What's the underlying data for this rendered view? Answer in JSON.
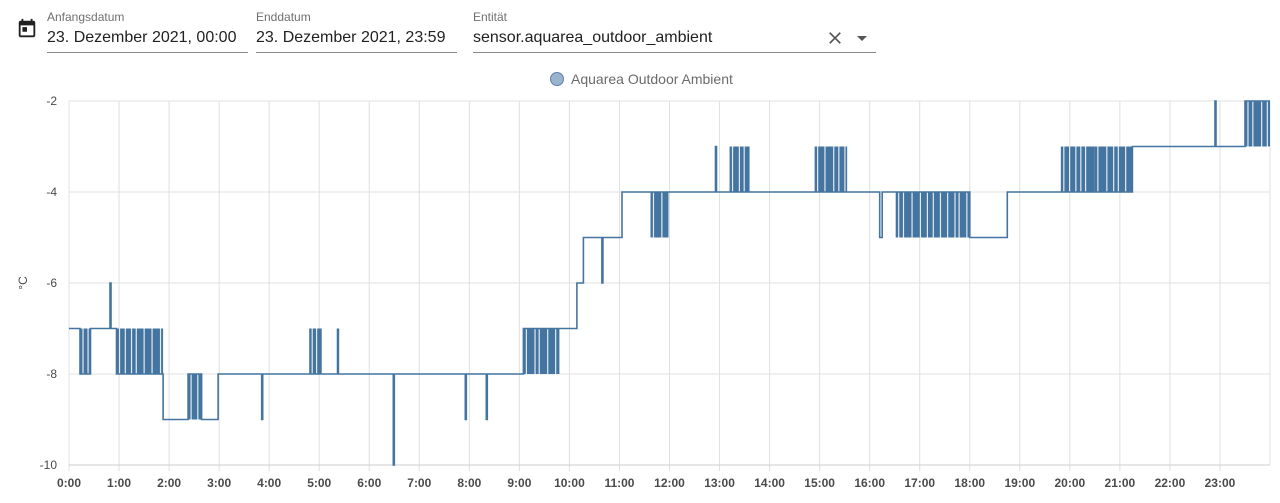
{
  "header": {
    "calendar_icon": "calendar-icon",
    "start": {
      "label": "Anfangsdatum",
      "value": "23. Dezember 2021, 00:00"
    },
    "end": {
      "label": "Enddatum",
      "value": "23. Dezember 2021, 23:59"
    },
    "entity": {
      "label": "Entität",
      "value": "sensor.aquarea_outdoor_ambient",
      "clear_icon": "close-icon",
      "dropdown_icon": "arrow-drop-down-icon"
    }
  },
  "colors": {
    "series": "#4474a0",
    "grid": "#e0e0e0"
  },
  "chart_data": {
    "type": "line",
    "ylabel": "°C",
    "ylim": [
      -10,
      -2
    ],
    "yticks": [
      "-2",
      "-4",
      "-6",
      "-8",
      "-10"
    ],
    "xlim": [
      0,
      24
    ],
    "xticks": [
      "0:00",
      "1:00",
      "2:00",
      "3:00",
      "4:00",
      "5:00",
      "6:00",
      "7:00",
      "8:00",
      "9:00",
      "10:00",
      "11:00",
      "12:00",
      "13:00",
      "14:00",
      "15:00",
      "16:00",
      "17:00",
      "18:00",
      "19:00",
      "20:00",
      "21:00",
      "22:00",
      "23:00"
    ],
    "grid": true,
    "legend_position": "top-center",
    "series": [
      {
        "name": "Aquarea Outdoor Ambient",
        "x": [
          0.0,
          0.22,
          0.22,
          0.43,
          0.43,
          0.82,
          0.82,
          0.84,
          0.84,
          0.95,
          0.95,
          1.88,
          1.88,
          2.38,
          2.38,
          2.65,
          2.65,
          2.98,
          2.98,
          3.85,
          3.85,
          3.87,
          3.87,
          6.48,
          6.48,
          6.5,
          6.5,
          7.92,
          7.92,
          7.94,
          7.94,
          8.34,
          8.34,
          8.36,
          8.36,
          9.08,
          9.08,
          9.8,
          9.8,
          10.15,
          10.15,
          10.28,
          10.28,
          10.65,
          10.65,
          10.67,
          10.67,
          11.05,
          11.05,
          11.62,
          11.62,
          11.98,
          11.98,
          12.92,
          12.92,
          12.94,
          12.94,
          13.6,
          13.6,
          14.9,
          14.9,
          15.55,
          15.55,
          16.2,
          16.2,
          16.25,
          16.25,
          16.52,
          16.52,
          18.0,
          18.0,
          18.75,
          18.75,
          19.82,
          19.82,
          21.25,
          21.25,
          22.9,
          22.9,
          22.92,
          22.92,
          23.5,
          23.5,
          24.0
        ],
        "y": [
          -7,
          -7,
          -8,
          -8,
          -7,
          -7,
          -6,
          -6,
          -7,
          -7,
          -8,
          -8,
          -9,
          -9,
          -8,
          -8,
          -9,
          -9,
          -8,
          -8,
          -9,
          -9,
          -8,
          -8,
          -10,
          -10,
          -8,
          -8,
          -9,
          -9,
          -8,
          -8,
          -9,
          -9,
          -8,
          -8,
          -7,
          -7,
          -7,
          -7,
          -6,
          -6,
          -5,
          -5,
          -6,
          -6,
          -5,
          -5,
          -4,
          -4,
          -4,
          -4,
          -4,
          -4,
          -3,
          -3,
          -4,
          -4,
          -4,
          -4,
          -4,
          -4,
          -4,
          -4,
          -5,
          -5,
          -4,
          -4,
          -4,
          -4,
          -5,
          -5,
          -4,
          -4,
          -4,
          -4,
          -3,
          -3,
          -2,
          -2,
          -3,
          -3,
          -2,
          -2
        ]
      }
    ],
    "flicker_bands": [
      {
        "from": 0.22,
        "to": 0.43,
        "low": -8,
        "high": -7
      },
      {
        "from": 0.95,
        "to": 1.88,
        "low": -8,
        "high": -7
      },
      {
        "from": 2.38,
        "to": 2.65,
        "low": -9,
        "high": -8
      },
      {
        "from": 4.8,
        "to": 5.05,
        "low": -8,
        "high": -7
      },
      {
        "from": 5.35,
        "to": 5.4,
        "low": -8,
        "high": -7
      },
      {
        "from": 9.08,
        "to": 9.8,
        "low": -8,
        "high": -7
      },
      {
        "from": 11.62,
        "to": 11.98,
        "low": -5,
        "high": -4
      },
      {
        "from": 13.2,
        "to": 13.6,
        "low": -4,
        "high": -3
      },
      {
        "from": 14.9,
        "to": 15.55,
        "low": -4,
        "high": -3
      },
      {
        "from": 16.52,
        "to": 18.0,
        "low": -5,
        "high": -4
      },
      {
        "from": 19.82,
        "to": 20.5,
        "low": -4,
        "high": -3
      },
      {
        "from": 20.5,
        "to": 21.25,
        "low": -4,
        "high": -3
      },
      {
        "from": 23.5,
        "to": 24.0,
        "low": -3,
        "high": -2
      }
    ]
  }
}
